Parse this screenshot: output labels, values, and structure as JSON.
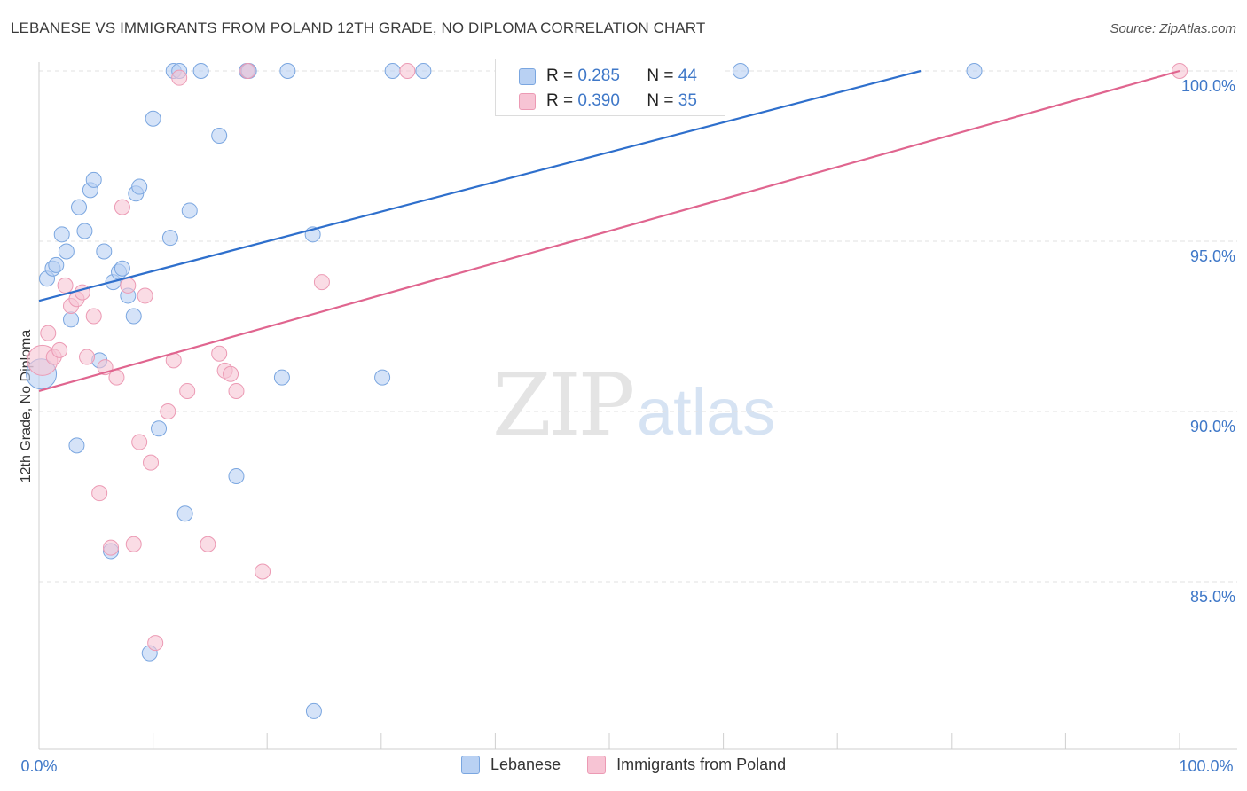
{
  "chart_data": {
    "type": "scatter",
    "title": "LEBANESE VS IMMIGRANTS FROM POLAND 12TH GRADE, NO DIPLOMA CORRELATION CHART",
    "source": "Source: ZipAtlas.com",
    "xlabel": "",
    "ylabel": "12th Grade, No Diploma",
    "x_tick_labels": [
      "0.0%",
      "100.0%"
    ],
    "y_tick_labels": [
      "100.0%",
      "95.0%",
      "90.0%",
      "85.0%"
    ],
    "y_ticks": [
      100,
      95,
      90,
      85
    ],
    "xlim": [
      0,
      100
    ],
    "ylim": [
      80.5,
      100.4
    ],
    "grid": true,
    "watermark": "ZIPatlas",
    "series": [
      {
        "name": "Lebanese",
        "color": "#7aa6e0",
        "fill": "#b9d1f3",
        "line_color": "#2e6fcc",
        "R": "0.285",
        "N": "44",
        "trend": {
          "x0": 0,
          "y0": 93.25,
          "x1": 77.3,
          "y1": 100.0
        },
        "points": [
          [
            0.2,
            91.1
          ],
          [
            0.7,
            93.9
          ],
          [
            1.2,
            94.2
          ],
          [
            1.5,
            94.3
          ],
          [
            2.0,
            95.2
          ],
          [
            2.4,
            94.7
          ],
          [
            2.8,
            92.7
          ],
          [
            3.3,
            89.0
          ],
          [
            3.5,
            96.0
          ],
          [
            4.0,
            95.3
          ],
          [
            4.5,
            96.5
          ],
          [
            4.8,
            96.8
          ],
          [
            5.3,
            91.5
          ],
          [
            5.7,
            94.7
          ],
          [
            6.3,
            85.9
          ],
          [
            6.5,
            93.8
          ],
          [
            7.0,
            94.1
          ],
          [
            7.3,
            94.2
          ],
          [
            7.8,
            93.4
          ],
          [
            8.3,
            92.8
          ],
          [
            8.5,
            96.4
          ],
          [
            8.8,
            96.6
          ],
          [
            9.7,
            82.9
          ],
          [
            10.0,
            98.6
          ],
          [
            10.5,
            89.5
          ],
          [
            11.5,
            95.1
          ],
          [
            11.8,
            100.0
          ],
          [
            12.3,
            100.0
          ],
          [
            12.8,
            87.0
          ],
          [
            13.2,
            95.9
          ],
          [
            14.2,
            100.0
          ],
          [
            15.8,
            98.1
          ],
          [
            17.3,
            88.1
          ],
          [
            18.2,
            100.0
          ],
          [
            18.4,
            100.0
          ],
          [
            21.3,
            91.0
          ],
          [
            21.8,
            100.0
          ],
          [
            24.0,
            95.2
          ],
          [
            24.1,
            81.2
          ],
          [
            30.1,
            91.0
          ],
          [
            31.0,
            100.0
          ],
          [
            33.7,
            100.0
          ],
          [
            61.5,
            100.0
          ],
          [
            82.0,
            100.0
          ]
        ]
      },
      {
        "name": "Immigrants from Poland",
        "color": "#ec9ab4",
        "fill": "#f7c4d4",
        "line_color": "#e0658f",
        "R": "0.390",
        "N": "35",
        "trend": {
          "x0": 0,
          "y0": 90.6,
          "x1": 100.0,
          "y1": 100.0
        },
        "points": [
          [
            0.3,
            91.5
          ],
          [
            0.8,
            92.3
          ],
          [
            1.3,
            91.6
          ],
          [
            1.8,
            91.8
          ],
          [
            2.3,
            93.7
          ],
          [
            2.8,
            93.1
          ],
          [
            3.3,
            93.3
          ],
          [
            3.8,
            93.5
          ],
          [
            4.2,
            91.6
          ],
          [
            4.8,
            92.8
          ],
          [
            5.3,
            87.6
          ],
          [
            5.8,
            91.3
          ],
          [
            6.3,
            86.0
          ],
          [
            6.8,
            91.0
          ],
          [
            7.3,
            96.0
          ],
          [
            7.8,
            93.7
          ],
          [
            8.3,
            86.1
          ],
          [
            8.8,
            89.1
          ],
          [
            9.3,
            93.4
          ],
          [
            9.8,
            88.5
          ],
          [
            10.2,
            83.2
          ],
          [
            11.3,
            90.0
          ],
          [
            11.8,
            91.5
          ],
          [
            12.3,
            99.8
          ],
          [
            13.0,
            90.6
          ],
          [
            14.8,
            86.1
          ],
          [
            15.8,
            91.7
          ],
          [
            16.3,
            91.2
          ],
          [
            16.8,
            91.1
          ],
          [
            17.3,
            90.6
          ],
          [
            18.3,
            100.0
          ],
          [
            19.6,
            85.3
          ],
          [
            24.8,
            93.8
          ],
          [
            32.3,
            100.0
          ],
          [
            100.0,
            100.0
          ]
        ]
      }
    ]
  },
  "legend": {
    "r_label": "R =",
    "n_label": "N ="
  }
}
